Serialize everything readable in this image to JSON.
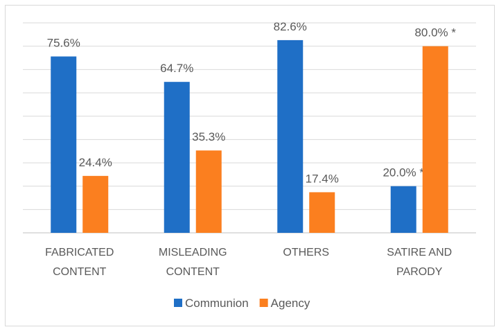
{
  "chart_data": {
    "type": "bar",
    "title": "",
    "xlabel": "",
    "ylabel": "",
    "categories": [
      [
        "FABRICATED",
        "CONTENT"
      ],
      [
        "MISLEADING",
        "CONTENT"
      ],
      [
        "OTHERS"
      ],
      [
        "SATIRE AND",
        "PARODY"
      ]
    ],
    "series": [
      {
        "name": "Communion",
        "color": "#1f6fc6",
        "values": [
          75.6,
          64.7,
          82.6,
          20.0
        ],
        "labels": [
          "75.6%",
          "64.7%",
          "82.6%",
          "20.0% *"
        ]
      },
      {
        "name": "Agency",
        "color": "#fb7f1f",
        "values": [
          24.4,
          35.3,
          17.4,
          80.0
        ],
        "labels": [
          "24.4%",
          "35.3%",
          "17.4%",
          "80.0% *"
        ]
      }
    ],
    "ylim": [
      0,
      90
    ],
    "grid": true,
    "legend": "bottom"
  }
}
